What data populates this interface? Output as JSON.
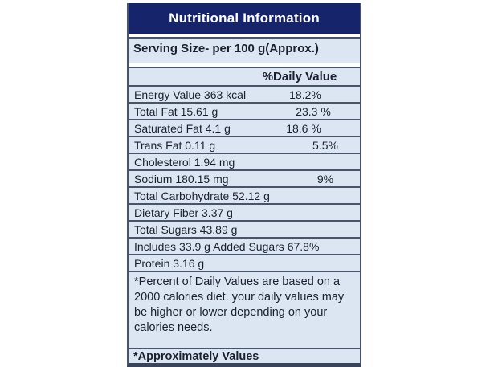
{
  "table": {
    "title": "Nutritional Information",
    "serving_size": "Serving Size- per 100 g(Approx.)",
    "daily_value_header": "%Daily Value",
    "rows": [
      {
        "label": "Energy Value 363 kcal",
        "value": "18.2%"
      },
      {
        "label": "Total Fat 15.61 g",
        "value": "23.3 %"
      },
      {
        "label": "Saturated Fat 4.1 g",
        "value": "18.6 %"
      },
      {
        "label": "Trans Fat 0.11 g",
        "value": "5.5%"
      },
      {
        "label": "Cholesterol 1.94 mg",
        "value": ""
      },
      {
        "label": "Sodium 180.15 mg",
        "value": "9%"
      },
      {
        "label": "Total Carbohydrate 52.12 g",
        "value": ""
      },
      {
        "label": "Dietary Fiber 3.37 g",
        "value": ""
      },
      {
        "label": "Total Sugars 43.89 g",
        "value": ""
      },
      {
        "label": "Includes 33.9 g Added Sugars 67.8%",
        "value": ""
      },
      {
        "label": "Protein 3.16 g",
        "value": ""
      }
    ],
    "footnote_lines": [
      "*Percent of Daily Values are based on a",
      "2000 calories diet. your daily values may",
      "be higher or lower depending on your",
      "calories needs."
    ],
    "approx_note": "*Approximately Values",
    "colors": {
      "header_bg": "#16256b",
      "header_text": "#ffffff",
      "row_bg": "#dce6f2",
      "border": "#4a5468",
      "text": "#1b2030"
    }
  }
}
